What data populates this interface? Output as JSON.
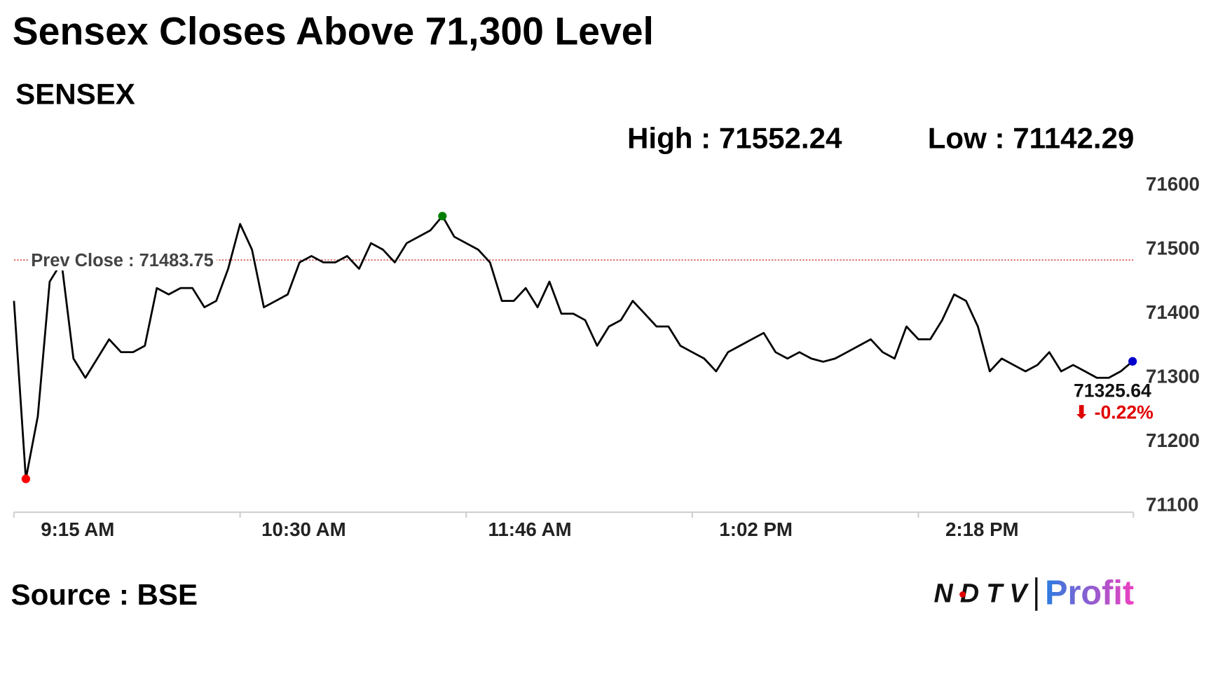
{
  "chart_data": {
    "type": "line",
    "title": "Sensex Closes Above 71,300 Level",
    "subtitle": "SENSEX",
    "source": "Source : BSE",
    "logo": {
      "left": "NDTV",
      "right": "Profit"
    },
    "high_text": "High : 71552.24",
    "low_text": "Low : 71142.29",
    "prev_close": 71483.75,
    "prev_close_text": "Prev Close : 71483.75",
    "last_text": "71325.64",
    "change_text": "⬇ -0.22%",
    "categories": [
      "9:15 AM",
      null,
      null,
      null,
      null,
      null,
      null,
      null,
      null,
      null,
      null,
      null,
      null,
      null,
      null,
      null,
      null,
      null,
      null,
      "10:30 AM",
      null,
      null,
      null,
      null,
      null,
      null,
      null,
      null,
      null,
      null,
      null,
      null,
      null,
      null,
      null,
      null,
      null,
      null,
      "11:46 AM",
      null,
      null,
      null,
      null,
      null,
      null,
      null,
      null,
      null,
      null,
      null,
      null,
      null,
      null,
      null,
      null,
      null,
      null,
      "1:02 PM",
      null,
      null,
      null,
      null,
      null,
      null,
      null,
      null,
      null,
      null,
      null,
      null,
      null,
      null,
      null,
      null,
      null,
      null,
      "2:18 PM",
      null,
      null,
      null,
      null,
      null,
      null,
      null,
      null,
      null,
      null,
      null,
      null,
      null,
      null,
      null,
      null,
      null,
      null
    ],
    "series": [
      {
        "name": "SENSEX",
        "color": "#000000",
        "values": [
          71420,
          71142.29,
          71240,
          71450,
          71480,
          71330,
          71300,
          71330,
          71360,
          71340,
          71340,
          71350,
          71440,
          71430,
          71440,
          71440,
          71410,
          71420,
          71470,
          71540,
          71500,
          71410,
          71420,
          71430,
          71480,
          71490,
          71480,
          71480,
          71490,
          71470,
          71510,
          71500,
          71480,
          71510,
          71520,
          71530,
          71552.24,
          71520,
          71510,
          71500,
          71480,
          71420,
          71420,
          71440,
          71410,
          71450,
          71400,
          71400,
          71390,
          71350,
          71380,
          71390,
          71420,
          71400,
          71380,
          71380,
          71350,
          71340,
          71330,
          71310,
          71340,
          71350,
          71360,
          71370,
          71340,
          71330,
          71340,
          71330,
          71325,
          71330,
          71340,
          71350,
          71360,
          71340,
          71330,
          71380,
          71360,
          71360,
          71390,
          71430,
          71420,
          71380,
          71310,
          71330,
          71320,
          71310,
          71320,
          71340,
          71310,
          71320,
          71310,
          71300,
          71300,
          71310,
          71325.64
        ]
      }
    ],
    "markers": [
      {
        "index": 36,
        "color": "#008000"
      },
      {
        "index": 1,
        "color": "#ff0000"
      },
      {
        "index": 94,
        "color": "#0000cc"
      }
    ],
    "ylim": [
      71100,
      71600
    ],
    "yticks": [
      71100,
      71200,
      71300,
      71400,
      71500,
      71600
    ],
    "prev_close_color": "#c00000",
    "change_color": "#e00000"
  }
}
